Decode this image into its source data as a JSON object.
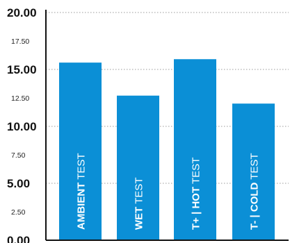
{
  "chart_data": {
    "type": "bar",
    "categories": [
      {
        "bold": "AMBIENT",
        "rest": " TEST"
      },
      {
        "bold": "WET",
        "rest": " TEST"
      },
      {
        "bold": "T+  |  HOT",
        "rest": " TEST"
      },
      {
        "bold": "T-  |  COLD",
        "rest": " TEST"
      }
    ],
    "values": [
      15.6,
      12.7,
      15.9,
      12.0
    ],
    "ylim": [
      0,
      20
    ],
    "y_ticks": [
      {
        "value": 0,
        "label": "0.00",
        "major": true
      },
      {
        "value": 2.5,
        "label": "2.50",
        "major": false
      },
      {
        "value": 5,
        "label": "5.00",
        "major": true
      },
      {
        "value": 7.5,
        "label": "7.50",
        "major": false
      },
      {
        "value": 10,
        "label": "10.00",
        "major": true
      },
      {
        "value": 12.5,
        "label": "12.50",
        "major": false
      },
      {
        "value": 15,
        "label": "15.00",
        "major": true
      },
      {
        "value": 17.5,
        "label": "17.50",
        "major": false
      },
      {
        "value": 20,
        "label": "20.00",
        "major": true
      }
    ],
    "grid": "dotted horizontal at major ticks",
    "colors": {
      "bar": "#0b8fd6",
      "axis": "#111111",
      "grid": "#9a9a9a"
    }
  }
}
